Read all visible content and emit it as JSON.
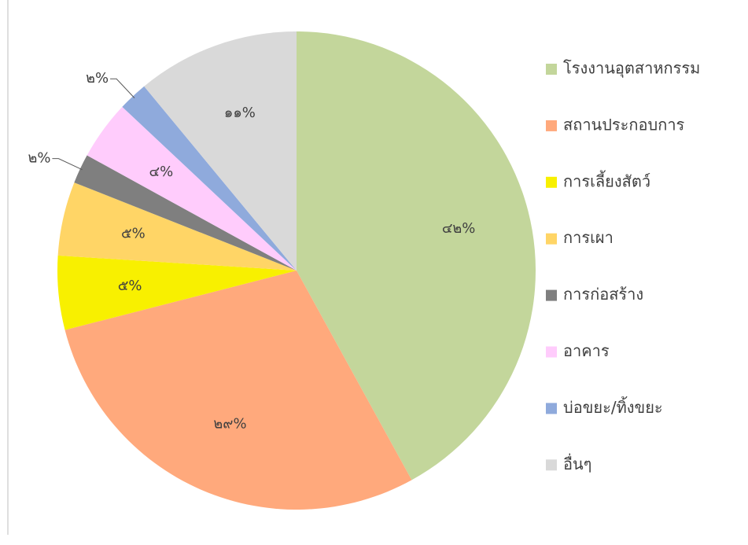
{
  "chart_data": {
    "type": "pie",
    "categories": [
      "โรงงานอุตสาหกรรม",
      "สถานประกอบการ",
      "การเลี้ยงสัตว์",
      "การเผา",
      "การก่อสร้าง",
      "อาคาร",
      "บ่อขยะ/ทิ้งขยะ",
      "อื่นๆ"
    ],
    "values": [
      42,
      29,
      5,
      5,
      2,
      4,
      2,
      11
    ],
    "value_labels": [
      "๔๒%",
      "๒๙%",
      "๕%",
      "๕%",
      "๒%",
      "๔%",
      "๒%",
      "๑๑%"
    ],
    "colors": [
      "#c3d69b",
      "#ffa97c",
      "#f8f000",
      "#ffd566",
      "#7f7f7f",
      "#ffccfc",
      "#8faadc",
      "#d9d9d9"
    ],
    "legend": "right"
  }
}
